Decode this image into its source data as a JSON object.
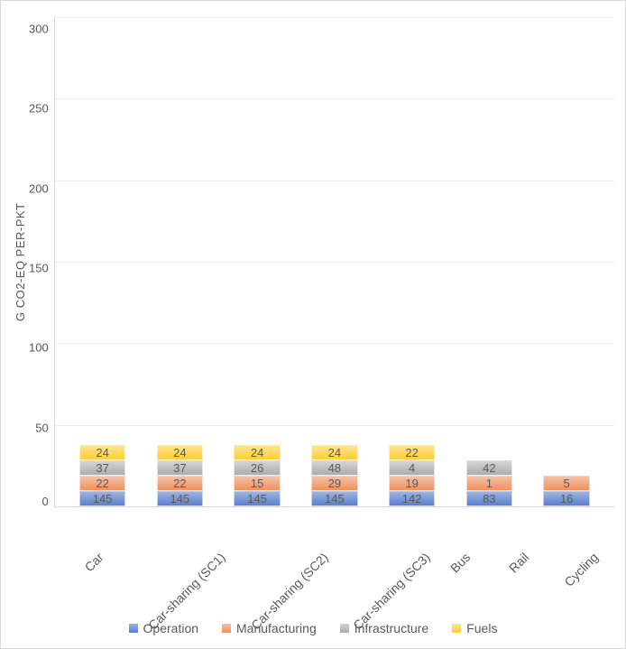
{
  "chart": {
    "type": "stacked-bar",
    "y_axis": {
      "title": "G CO2-EQ PER-PKT",
      "min": 0,
      "max": 300,
      "step": 50,
      "ticks": [
        300,
        250,
        200,
        150,
        100,
        50,
        0
      ]
    },
    "series": [
      {
        "key": "Operation",
        "label": "Operation",
        "color_top": "#9db4e2",
        "color_bot": "#5b7fcb"
      },
      {
        "key": "Manufacturing",
        "label": "Manufacturing",
        "color_top": "#f5c0a7",
        "color_bot": "#ee925f"
      },
      {
        "key": "Infrastructure",
        "label": "Infrastructure",
        "color_top": "#d4d4d4",
        "color_bot": "#acacac"
      },
      {
        "key": "Fuels",
        "label": "Fuels",
        "color_top": "#ffe48b",
        "color_bot": "#ffcf34"
      }
    ],
    "categories": [
      {
        "label": "Car",
        "values": {
          "Operation": 145,
          "Manufacturing": 22,
          "Infrastructure": 37,
          "Fuels": 24
        }
      },
      {
        "label": "Car-sharing (SC1)",
        "values": {
          "Operation": 145,
          "Manufacturing": 22,
          "Infrastructure": 37,
          "Fuels": 24
        }
      },
      {
        "label": "Car-sharing (SC2)",
        "values": {
          "Operation": 145,
          "Manufacturing": 15,
          "Infrastructure": 26,
          "Fuels": 24
        }
      },
      {
        "label": "Car-sharing (SC3)",
        "values": {
          "Operation": 145,
          "Manufacturing": 29,
          "Infrastructure": 48,
          "Fuels": 24
        }
      },
      {
        "label": "Bus",
        "values": {
          "Operation": 142,
          "Manufacturing": 19,
          "Infrastructure": 4,
          "Fuels": 22
        }
      },
      {
        "label": "Rail",
        "values": {
          "Operation": 83,
          "Manufacturing": 1,
          "Infrastructure": 42,
          "Fuels": 0
        }
      },
      {
        "label": "Cycling",
        "values": {
          "Operation": 16,
          "Manufacturing": 5,
          "Infrastructure": 0,
          "Fuels": 0
        }
      }
    ],
    "background_color": "#ffffff",
    "grid_color": "#ececec",
    "axis_color": "#d9d9d9",
    "label_color": "#595959",
    "label_fontsize": 13
  }
}
